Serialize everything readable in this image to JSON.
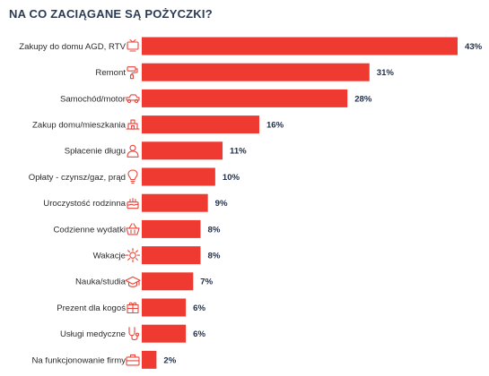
{
  "chart_data": {
    "type": "bar",
    "orientation": "horizontal",
    "title": "NA CO ZACIĄGANE SĄ POŻYCZKI?",
    "bar_color": "#ee3a30",
    "icon_color": "#e8453c",
    "xlim": [
      0,
      43
    ],
    "grid": false,
    "categories": [
      "Zakupy do domu AGD, RTV",
      "Remont",
      "Samochód/motor",
      "Zakup domu/mieszkania",
      "Spłacenie długu",
      "Opłaty - czynsz/gaz, prąd",
      "Uroczystość rodzinna",
      "Codzienne wydatki",
      "Wakacje",
      "Nauka/studia",
      "Prezent dla kogoś",
      "Usługi medyczne",
      "Na funkcjonowanie firmy"
    ],
    "values": [
      43,
      31,
      28,
      16,
      11,
      10,
      9,
      8,
      8,
      7,
      6,
      6,
      2
    ],
    "value_labels": [
      "43%",
      "31%",
      "28%",
      "16%",
      "11%",
      "10%",
      "9%",
      "8%",
      "8%",
      "7%",
      "6%",
      "6%",
      "2%"
    ],
    "icons": [
      "tv-icon",
      "paint-roller-icon",
      "car-icon",
      "house-icon",
      "person-icon",
      "lightbulb-icon",
      "cake-icon",
      "basket-icon",
      "sun-icon",
      "graduation-cap-icon",
      "gift-icon",
      "stethoscope-icon",
      "briefcase-icon"
    ]
  }
}
